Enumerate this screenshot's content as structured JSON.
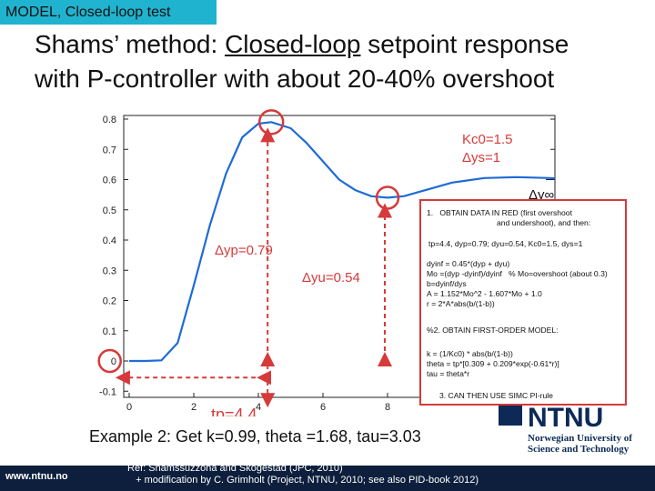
{
  "header": {
    "tag": "MODEL, Closed-loop test",
    "title_line1_a": "Shams’ method: ",
    "title_line1_b": "Closed-loop",
    "title_line1_c": " setpoint response",
    "title_line2": "with P-controller with about 20-40% overshoot"
  },
  "chart_data": {
    "type": "line",
    "x": [
      0,
      0.5,
      1.0,
      1.5,
      2.0,
      2.5,
      3.0,
      3.5,
      4.0,
      4.4,
      5.0,
      5.5,
      6.0,
      6.5,
      7.0,
      7.5,
      8.0,
      8.5,
      9.0,
      9.5,
      10,
      11,
      12,
      13,
      14,
      15,
      16,
      17,
      18,
      19,
      20
    ],
    "series": [
      {
        "values": [
          0,
          0,
          0.002,
          0.06,
          0.25,
          0.45,
          0.62,
          0.74,
          0.785,
          0.79,
          0.77,
          0.72,
          0.66,
          0.6,
          0.565,
          0.545,
          0.54,
          0.545,
          0.56,
          0.575,
          0.59,
          0.605,
          0.608,
          0.605,
          0.6,
          0.597,
          0.596,
          0.597,
          0.598,
          0.598,
          0.598
        ]
      }
    ],
    "xticks": [
      0,
      2,
      4,
      6,
      8
    ],
    "yticks": [
      -0.1,
      0,
      0.1,
      0.2,
      0.3,
      0.4,
      0.5,
      0.6,
      0.7,
      0.8
    ],
    "xtick_labels": [
      "0",
      "2",
      "4",
      "6",
      "8"
    ],
    "ytick_labels": [
      "-0.1",
      "0",
      "0.1",
      "0.2",
      "0.3",
      "0.4",
      "0.5",
      "0.6",
      "0.7",
      "0.8"
    ],
    "xlim": [
      0,
      20
    ],
    "ylim": [
      -0.1,
      0.82
    ],
    "grid": false,
    "line_color": "#1f6bd6",
    "annotations": {
      "legend_kc0": "Kc0=1.5",
      "legend_dys": "Δys=1",
      "dy_inf": "Δy∞",
      "dyp": "Δyp=0.79",
      "dyu": "Δyu=0.54",
      "tp": "tp=4.4",
      "accent": "#d63a3a"
    }
  },
  "box": {
    "l1": "1.   OBTAIN DATA IN RED (first overshoot",
    "l2": "and undershoot), and then:",
    "l3": "tp=4.4, dyp=0.79; dyu=0.54, Kc0=1.5, dys=1",
    "l4": "dyinf = 0.45*(dyp + dyu)",
    "l5": "Mo =(dyp -dyinf)/dyinf   % Mo=overshoot (about 0.3)",
    "l6": "b=dyinf/dys",
    "l7": "A = 1.152*Mo^2 - 1.607*Mo + 1.0",
    "l8": "r = 2*A*abs(b/(1-b))",
    "l9": "%2. OBTAIN FIRST-ORDER MODEL:",
    "l10": "k = (1/Kc0) * abs(b/(1-b))",
    "l11": "theta = tp*[0.309 + 0.209*exp(-0.61*r)]",
    "l12": "tau = theta*r",
    "l13": "3. CAN THEN USE SIMC PI-rule"
  },
  "example": "Example 2: Get k=0.99, theta =1.68, tau=3.03",
  "footer": {
    "url": "www.ntnu.no",
    "ref1": "Ref: Shamssuzzoha and Skogestad (JPC, 2010)",
    "ref2": "   + modification by C. Grimholt (Project, NTNU, 2010; see also PID-book 2012)"
  },
  "logo": {
    "ntnu": "NTNU",
    "sub1": "Norwegian University of",
    "sub2": "Science and Technology",
    "color": "#0d2a57"
  }
}
